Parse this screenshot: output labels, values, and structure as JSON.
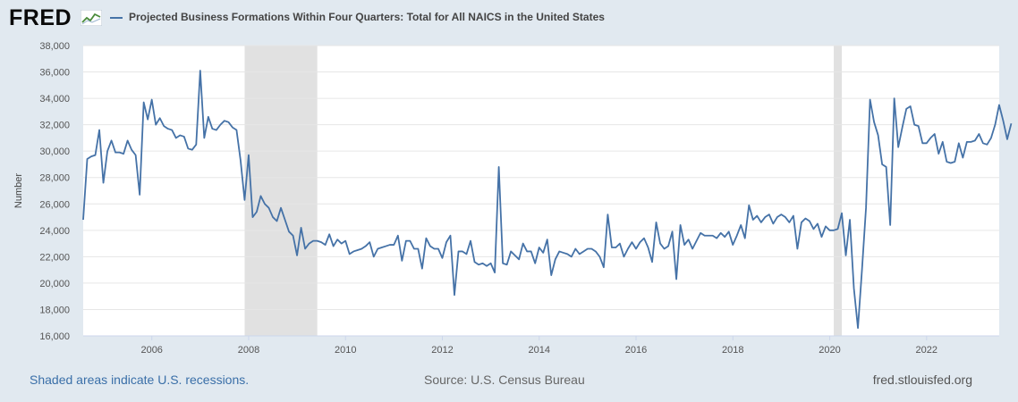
{
  "header": {
    "logo": "FRED",
    "title": "Projected Business Formations Within Four Quarters: Total for All NAICS in the United States"
  },
  "footer": {
    "recessions_note": "Shaded areas indicate U.S. recessions.",
    "source": "Source: U.S. Census Bureau",
    "site": "fred.stlouisfed.org"
  },
  "colors": {
    "line": "#4572a7",
    "recession": "#e1e1e1",
    "background": "#e1e9f0",
    "plot": "#ffffff"
  },
  "chart_data": {
    "type": "line",
    "ylabel": "Number",
    "xlabel": "",
    "ylim": [
      16000,
      38000
    ],
    "yticks": [
      16000,
      18000,
      20000,
      22000,
      24000,
      26000,
      28000,
      30000,
      32000,
      34000,
      36000,
      38000
    ],
    "xlim": [
      2004.583,
      2023.5
    ],
    "xticks": [
      2006,
      2008,
      2010,
      2012,
      2014,
      2016,
      2018,
      2020,
      2022
    ],
    "grid": "horizontal",
    "recessions": [
      [
        2007.917,
        2009.417
      ],
      [
        2020.083,
        2020.25
      ]
    ],
    "series": [
      {
        "start": 2004.583,
        "step": 0.08333,
        "values": [
          24800,
          29400,
          29600,
          29700,
          31600,
          27600,
          30000,
          30800,
          29900,
          29900,
          29800,
          30800,
          30100,
          29700,
          26700,
          33700,
          32400,
          33900,
          32000,
          32500,
          31900,
          31700,
          31600,
          31000,
          31200,
          31100,
          30200,
          30100,
          30500,
          36100,
          31000,
          32600,
          31700,
          31600,
          32000,
          32300,
          32200,
          31800,
          31600,
          29300,
          26300,
          29700,
          25000,
          25400,
          26600,
          26000,
          25700,
          25000,
          24700,
          25700,
          24800,
          23900,
          23600,
          22100,
          24200,
          22600,
          23000,
          23200,
          23200,
          23100,
          22900,
          23700,
          22800,
          23300,
          23000,
          23200,
          22200,
          22400,
          22500,
          22600,
          22800,
          23100,
          22000,
          22600,
          22700,
          22800,
          22900,
          22900,
          23600,
          21700,
          23200,
          23200,
          22600,
          22600,
          21100,
          23400,
          22800,
          22600,
          22600,
          21900,
          23100,
          23600,
          19100,
          22400,
          22400,
          22200,
          23200,
          21600,
          21400,
          21500,
          21300,
          21500,
          20800,
          28800,
          21500,
          21400,
          22400,
          22100,
          21800,
          23000,
          22400,
          22400,
          21500,
          22700,
          22300,
          23300,
          20600,
          21800,
          22400,
          22300,
          22200,
          22000,
          22600,
          22200,
          22400,
          22600,
          22600,
          22400,
          22000,
          21200,
          25200,
          22700,
          22700,
          23000,
          22000,
          22600,
          23100,
          22600,
          23100,
          23400,
          22700,
          21600,
          24600,
          23000,
          22600,
          22800,
          23900,
          20300,
          24400,
          22900,
          23300,
          22600,
          23200,
          23800,
          23600,
          23600,
          23600,
          23400,
          23800,
          23500,
          23900,
          22900,
          23600,
          24400,
          23400,
          25900,
          24800,
          25100,
          24600,
          25000,
          25200,
          24500,
          25000,
          25200,
          25000,
          24600,
          25100,
          22600,
          24600,
          24900,
          24700,
          24100,
          24500,
          23500,
          24300,
          24000,
          24000,
          24100,
          25300,
          22100,
          24800,
          19600,
          16600,
          21000,
          25700,
          33900,
          32200,
          31200,
          29000,
          28800,
          24400,
          34000,
          30300,
          31800,
          33200,
          33400,
          32000,
          31900,
          30600,
          30600,
          31000,
          31300,
          29800,
          30700,
          29200,
          29100,
          29200,
          30600,
          29500,
          30700,
          30700,
          30800,
          31300,
          30600,
          30500,
          31000,
          32000,
          33500,
          32300,
          30900,
          32100
        ]
      }
    ]
  }
}
